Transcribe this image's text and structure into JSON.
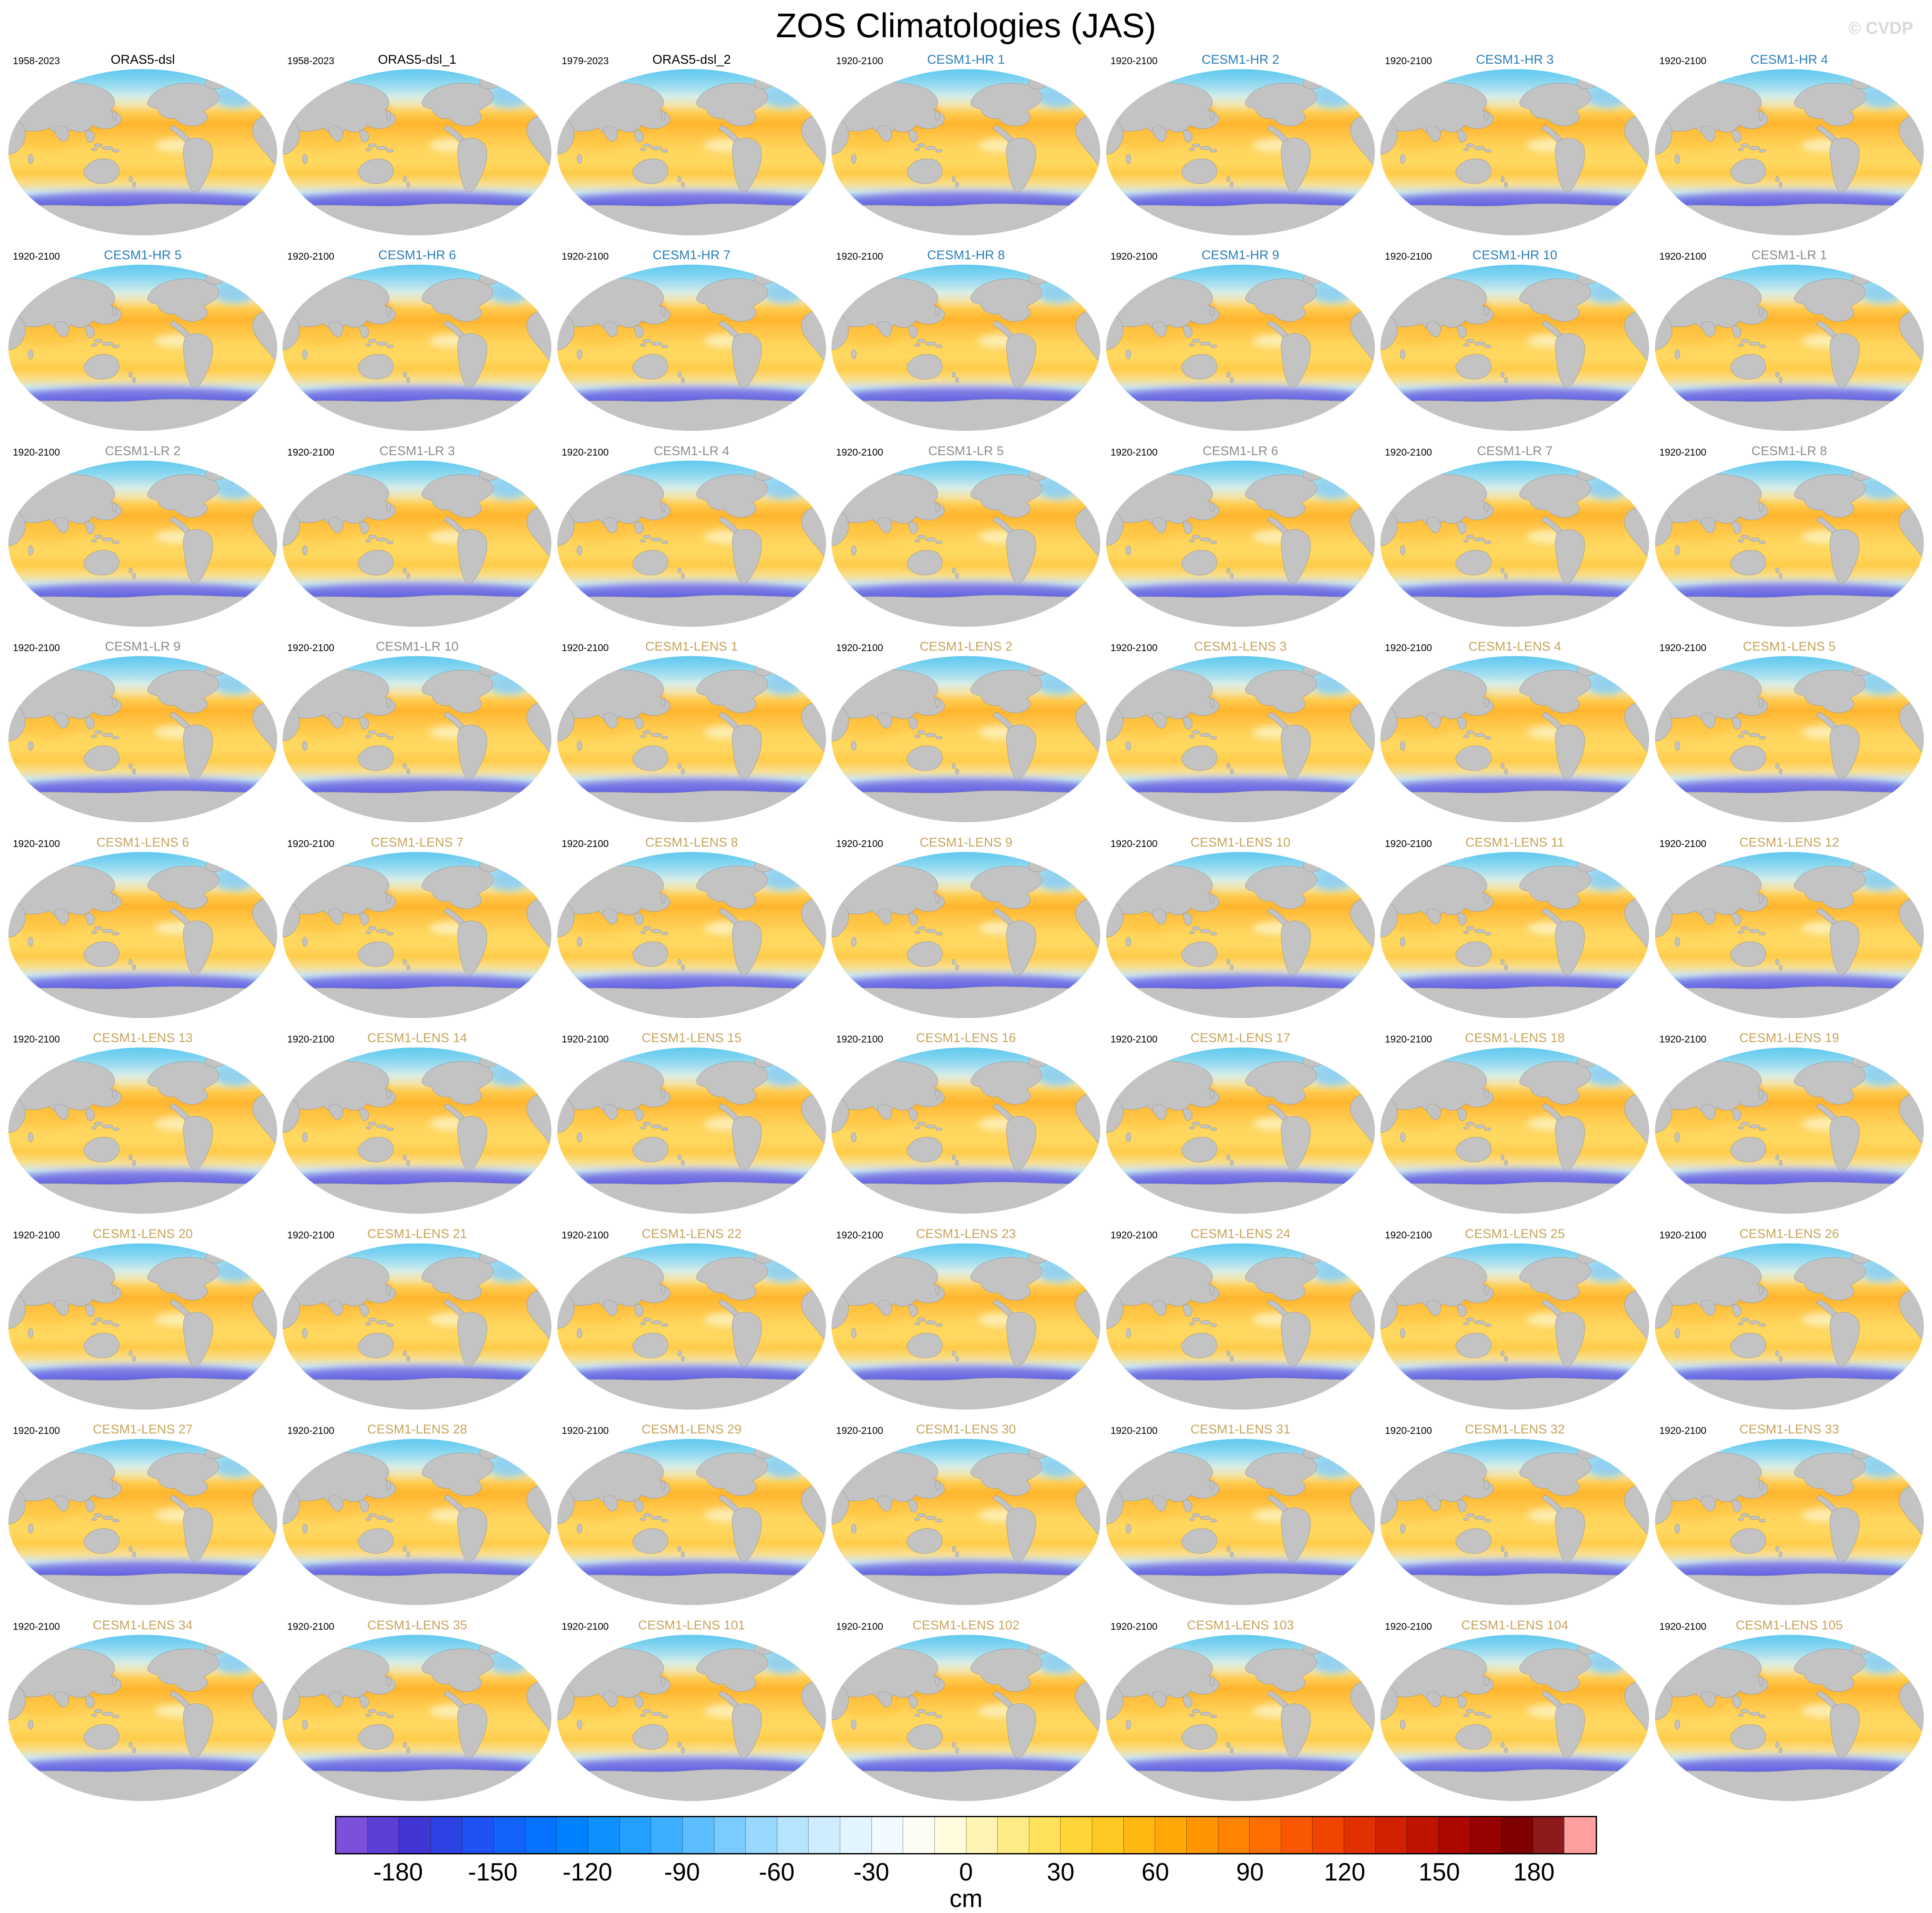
{
  "header": {
    "title": "ZOS Climatologies (JAS)",
    "watermark": "© CVDP"
  },
  "chart_data": {
    "type": "heatmap",
    "title": "ZOS Climatologies (JAS)",
    "description": "Grid of 63 global (Pacific-centered, elliptical projection) sea-surface-height (ZOS) climatology maps for JAS season",
    "unit": "cm",
    "grid": {
      "columns": 7,
      "rows": 9
    },
    "colorbar": {
      "unit": "cm",
      "min": -200,
      "max": 200,
      "interval": 10,
      "ticks": [
        -180,
        -150,
        -120,
        -90,
        -60,
        -30,
        0,
        30,
        60,
        90,
        120,
        150,
        180
      ],
      "colors": [
        "#7C50DA",
        "#5C40D6",
        "#4136D2",
        "#2C42E2",
        "#1E52F2",
        "#1263FA",
        "#0672FF",
        "#0082FF",
        "#0E90FF",
        "#229FFF",
        "#3EAEFF",
        "#5CBDFF",
        "#7ACBFF",
        "#98D8FF",
        "#B6E4FF",
        "#CFEDFF",
        "#E2F4FF",
        "#F1FAFF",
        "#FCFEF6",
        "#FFFBDD",
        "#FFF4B2",
        "#FFEB86",
        "#FFE15C",
        "#FFD53A",
        "#FFC722",
        "#FFB712",
        "#FFA707",
        "#FF9500",
        "#FF8200",
        "#FF6E00",
        "#FA5800",
        "#F04400",
        "#E23100",
        "#D22100",
        "#C01300",
        "#AC0800",
        "#960200",
        "#7F0000",
        "#8E1B1B",
        "#FFA0A0"
      ]
    },
    "groups": {
      "obs": {
        "title_color": "#000000"
      },
      "hr": {
        "title_color": "#2C7FB8"
      },
      "lr": {
        "title_color": "#8C8C8C"
      },
      "lens": {
        "title_color": "#C8A45C"
      }
    },
    "panels": [
      {
        "title": "ORAS5-dsl",
        "years": "1958-2023",
        "group": "obs"
      },
      {
        "title": "ORAS5-dsl_1",
        "years": "1958-2023",
        "group": "obs"
      },
      {
        "title": "ORAS5-dsl_2",
        "years": "1979-2023",
        "group": "obs"
      },
      {
        "title": "CESM1-HR 1",
        "years": "1920-2100",
        "group": "hr"
      },
      {
        "title": "CESM1-HR 2",
        "years": "1920-2100",
        "group": "hr"
      },
      {
        "title": "CESM1-HR 3",
        "years": "1920-2100",
        "group": "hr"
      },
      {
        "title": "CESM1-HR 4",
        "years": "1920-2100",
        "group": "hr"
      },
      {
        "title": "CESM1-HR 5",
        "years": "1920-2100",
        "group": "hr"
      },
      {
        "title": "CESM1-HR 6",
        "years": "1920-2100",
        "group": "hr"
      },
      {
        "title": "CESM1-HR 7",
        "years": "1920-2100",
        "group": "hr"
      },
      {
        "title": "CESM1-HR 8",
        "years": "1920-2100",
        "group": "hr"
      },
      {
        "title": "CESM1-HR 9",
        "years": "1920-2100",
        "group": "hr"
      },
      {
        "title": "CESM1-HR 10",
        "years": "1920-2100",
        "group": "hr"
      },
      {
        "title": "CESM1-LR 1",
        "years": "1920-2100",
        "group": "lr"
      },
      {
        "title": "CESM1-LR 2",
        "years": "1920-2100",
        "group": "lr"
      },
      {
        "title": "CESM1-LR 3",
        "years": "1920-2100",
        "group": "lr"
      },
      {
        "title": "CESM1-LR 4",
        "years": "1920-2100",
        "group": "lr"
      },
      {
        "title": "CESM1-LR 5",
        "years": "1920-2100",
        "group": "lr"
      },
      {
        "title": "CESM1-LR 6",
        "years": "1920-2100",
        "group": "lr"
      },
      {
        "title": "CESM1-LR 7",
        "years": "1920-2100",
        "group": "lr"
      },
      {
        "title": "CESM1-LR 8",
        "years": "1920-2100",
        "group": "lr"
      },
      {
        "title": "CESM1-LR 9",
        "years": "1920-2100",
        "group": "lr"
      },
      {
        "title": "CESM1-LR 10",
        "years": "1920-2100",
        "group": "lr"
      },
      {
        "title": "CESM1-LENS 1",
        "years": "1920-2100",
        "group": "lens"
      },
      {
        "title": "CESM1-LENS 2",
        "years": "1920-2100",
        "group": "lens"
      },
      {
        "title": "CESM1-LENS 3",
        "years": "1920-2100",
        "group": "lens"
      },
      {
        "title": "CESM1-LENS 4",
        "years": "1920-2100",
        "group": "lens"
      },
      {
        "title": "CESM1-LENS 5",
        "years": "1920-2100",
        "group": "lens"
      },
      {
        "title": "CESM1-LENS 6",
        "years": "1920-2100",
        "group": "lens"
      },
      {
        "title": "CESM1-LENS 7",
        "years": "1920-2100",
        "group": "lens"
      },
      {
        "title": "CESM1-LENS 8",
        "years": "1920-2100",
        "group": "lens"
      },
      {
        "title": "CESM1-LENS 9",
        "years": "1920-2100",
        "group": "lens"
      },
      {
        "title": "CESM1-LENS 10",
        "years": "1920-2100",
        "group": "lens"
      },
      {
        "title": "CESM1-LENS 11",
        "years": "1920-2100",
        "group": "lens"
      },
      {
        "title": "CESM1-LENS 12",
        "years": "1920-2100",
        "group": "lens"
      },
      {
        "title": "CESM1-LENS 13",
        "years": "1920-2100",
        "group": "lens"
      },
      {
        "title": "CESM1-LENS 14",
        "years": "1920-2100",
        "group": "lens"
      },
      {
        "title": "CESM1-LENS 15",
        "years": "1920-2100",
        "group": "lens"
      },
      {
        "title": "CESM1-LENS 16",
        "years": "1920-2100",
        "group": "lens"
      },
      {
        "title": "CESM1-LENS 17",
        "years": "1920-2100",
        "group": "lens"
      },
      {
        "title": "CESM1-LENS 18",
        "years": "1920-2100",
        "group": "lens"
      },
      {
        "title": "CESM1-LENS 19",
        "years": "1920-2100",
        "group": "lens"
      },
      {
        "title": "CESM1-LENS 20",
        "years": "1920-2100",
        "group": "lens"
      },
      {
        "title": "CESM1-LENS 21",
        "years": "1920-2100",
        "group": "lens"
      },
      {
        "title": "CESM1-LENS 22",
        "years": "1920-2100",
        "group": "lens"
      },
      {
        "title": "CESM1-LENS 23",
        "years": "1920-2100",
        "group": "lens"
      },
      {
        "title": "CESM1-LENS 24",
        "years": "1920-2100",
        "group": "lens"
      },
      {
        "title": "CESM1-LENS 25",
        "years": "1920-2100",
        "group": "lens"
      },
      {
        "title": "CESM1-LENS 26",
        "years": "1920-2100",
        "group": "lens"
      },
      {
        "title": "CESM1-LENS 27",
        "years": "1920-2100",
        "group": "lens"
      },
      {
        "title": "CESM1-LENS 28",
        "years": "1920-2100",
        "group": "lens"
      },
      {
        "title": "CESM1-LENS 29",
        "years": "1920-2100",
        "group": "lens"
      },
      {
        "title": "CESM1-LENS 30",
        "years": "1920-2100",
        "group": "lens"
      },
      {
        "title": "CESM1-LENS 31",
        "years": "1920-2100",
        "group": "lens"
      },
      {
        "title": "CESM1-LENS 32",
        "years": "1920-2100",
        "group": "lens"
      },
      {
        "title": "CESM1-LENS 33",
        "years": "1920-2100",
        "group": "lens"
      },
      {
        "title": "CESM1-LENS 34",
        "years": "1920-2100",
        "group": "lens"
      },
      {
        "title": "CESM1-LENS 35",
        "years": "1920-2100",
        "group": "lens"
      },
      {
        "title": "CESM1-LENS 101",
        "years": "1920-2100",
        "group": "lens"
      },
      {
        "title": "CESM1-LENS 102",
        "years": "1920-2100",
        "group": "lens"
      },
      {
        "title": "CESM1-LENS 103",
        "years": "1920-2100",
        "group": "lens"
      },
      {
        "title": "CESM1-LENS 104",
        "years": "1920-2100",
        "group": "lens"
      },
      {
        "title": "CESM1-LENS 105",
        "years": "1920-2100",
        "group": "lens"
      }
    ]
  }
}
